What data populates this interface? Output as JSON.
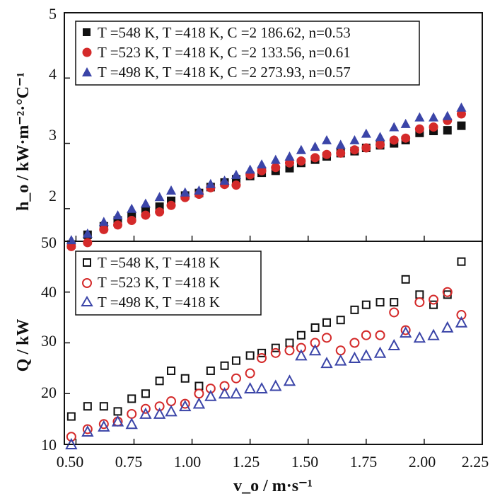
{
  "chart_data": [
    {
      "type": "scatter",
      "panel": "top",
      "ylabel": "h_o / kW·m⁻²·°C⁻¹",
      "ylim": [
        1.5,
        5
      ],
      "yticks": [
        "2",
        "3",
        "4",
        "5"
      ],
      "legend_position": "top-left",
      "series": [
        {
          "name": "T =548 K, T =418 K, C =2 186.62, n=0.53",
          "marker": "square-filled",
          "color": "#111111",
          "x": [
            0.48,
            0.55,
            0.62,
            0.68,
            0.74,
            0.8,
            0.86,
            0.91,
            0.97,
            1.03,
            1.08,
            1.14,
            1.19,
            1.25,
            1.3,
            1.36,
            1.42,
            1.47,
            1.53,
            1.58,
            1.64,
            1.7,
            1.75,
            1.81,
            1.87,
            1.92,
            1.98,
            2.04,
            2.1,
            2.16
          ],
          "y": [
            1.45,
            1.6,
            1.73,
            1.82,
            1.88,
            1.97,
            2.03,
            2.12,
            2.2,
            2.24,
            2.33,
            2.4,
            2.45,
            2.5,
            2.55,
            2.58,
            2.62,
            2.7,
            2.75,
            2.8,
            2.85,
            2.88,
            2.93,
            2.97,
            3.0,
            3.05,
            3.16,
            3.19,
            3.2,
            3.27
          ]
        },
        {
          "name": "T =523 K, T =418 K, C =2 133.56, n=0.61",
          "marker": "circle-filled",
          "color": "#d42a2a",
          "x": [
            0.48,
            0.55,
            0.62,
            0.68,
            0.74,
            0.8,
            0.86,
            0.91,
            0.97,
            1.03,
            1.08,
            1.14,
            1.19,
            1.25,
            1.3,
            1.36,
            1.42,
            1.47,
            1.53,
            1.58,
            1.64,
            1.7,
            1.75,
            1.81,
            1.87,
            1.92,
            1.98,
            2.04,
            2.1,
            2.16
          ],
          "y": [
            1.42,
            1.48,
            1.68,
            1.75,
            1.82,
            1.9,
            1.95,
            2.05,
            2.17,
            2.22,
            2.32,
            2.37,
            2.36,
            2.52,
            2.58,
            2.63,
            2.7,
            2.73,
            2.78,
            2.83,
            2.85,
            2.9,
            2.93,
            2.98,
            3.05,
            3.08,
            3.22,
            3.25,
            3.35,
            3.45
          ]
        },
        {
          "name": "T =498 K, T =418 K, C =2 273.93, n=0.57",
          "marker": "triangle-filled",
          "color": "#3b45a8",
          "x": [
            0.48,
            0.55,
            0.62,
            0.68,
            0.74,
            0.8,
            0.86,
            0.91,
            0.97,
            1.03,
            1.08,
            1.14,
            1.19,
            1.25,
            1.3,
            1.36,
            1.42,
            1.47,
            1.53,
            1.58,
            1.64,
            1.7,
            1.75,
            1.81,
            1.87,
            1.92,
            1.98,
            2.04,
            2.1,
            2.16
          ],
          "y": [
            1.52,
            1.62,
            1.8,
            1.9,
            2.0,
            2.08,
            2.18,
            2.28,
            2.25,
            2.28,
            2.38,
            2.43,
            2.52,
            2.6,
            2.68,
            2.75,
            2.8,
            2.9,
            2.95,
            3.05,
            2.98,
            3.05,
            3.15,
            3.1,
            3.25,
            3.3,
            3.4,
            3.4,
            3.42,
            3.55
          ]
        }
      ]
    },
    {
      "type": "scatter",
      "panel": "bottom",
      "xlabel": "v_o / m·s⁻¹",
      "ylabel": "Q / kW",
      "xlim": [
        0.45,
        2.25
      ],
      "ylim": [
        10,
        50
      ],
      "xticks": [
        "0.50",
        "0.75",
        "1.00",
        "1.25",
        "1.50",
        "1.75",
        "2.00",
        "2.25"
      ],
      "yticks": [
        "10",
        "20",
        "30",
        "40",
        "50"
      ],
      "legend_position": "top-left",
      "series": [
        {
          "name": "T =548 K, T =418 K",
          "marker": "square-open",
          "color": "#111111",
          "x": [
            0.48,
            0.55,
            0.62,
            0.68,
            0.74,
            0.8,
            0.86,
            0.91,
            0.97,
            1.03,
            1.08,
            1.14,
            1.19,
            1.25,
            1.3,
            1.36,
            1.42,
            1.47,
            1.53,
            1.58,
            1.64,
            1.7,
            1.75,
            1.81,
            1.87,
            1.92,
            1.98,
            2.04,
            2.1,
            2.16
          ],
          "y": [
            15.5,
            17.5,
            17.5,
            16.5,
            19.0,
            20.0,
            22.5,
            24.5,
            23.0,
            21.5,
            24.5,
            25.5,
            26.5,
            27.5,
            28.0,
            29.0,
            30.0,
            31.5,
            33.0,
            34.0,
            34.5,
            36.5,
            37.5,
            38.0,
            38.0,
            42.5,
            39.5,
            37.5,
            39.5,
            46.0
          ]
        },
        {
          "name": "T =523 K, T =418 K",
          "marker": "circle-open",
          "color": "#d42a2a",
          "x": [
            0.48,
            0.55,
            0.62,
            0.68,
            0.74,
            0.8,
            0.86,
            0.91,
            0.97,
            1.03,
            1.08,
            1.14,
            1.19,
            1.25,
            1.3,
            1.36,
            1.42,
            1.47,
            1.53,
            1.58,
            1.64,
            1.7,
            1.75,
            1.81,
            1.87,
            1.92,
            1.98,
            2.04,
            2.1,
            2.16
          ],
          "y": [
            11.5,
            13.0,
            14.0,
            14.5,
            16.0,
            17.0,
            17.5,
            18.5,
            18.0,
            20.0,
            21.0,
            21.5,
            23.0,
            24.0,
            27.0,
            28.0,
            28.5,
            29.0,
            30.0,
            31.0,
            28.5,
            30.0,
            31.5,
            31.5,
            36.0,
            32.5,
            38.0,
            38.5,
            40.0,
            35.5
          ]
        },
        {
          "name": "T =498 K, T =418 K",
          "marker": "triangle-open",
          "color": "#3b45a8",
          "x": [
            0.48,
            0.55,
            0.62,
            0.68,
            0.74,
            0.8,
            0.86,
            0.91,
            0.97,
            1.03,
            1.08,
            1.14,
            1.19,
            1.25,
            1.3,
            1.36,
            1.42,
            1.47,
            1.53,
            1.58,
            1.64,
            1.7,
            1.75,
            1.81,
            1.87,
            1.92,
            1.98,
            2.04,
            2.1,
            2.16
          ],
          "y": [
            10.0,
            12.5,
            13.5,
            14.5,
            14.0,
            16.0,
            16.0,
            16.5,
            17.5,
            18.0,
            19.5,
            20.0,
            20.0,
            21.0,
            21.0,
            21.5,
            22.5,
            27.5,
            28.5,
            26.0,
            26.5,
            27.0,
            27.5,
            28.0,
            29.5,
            32.0,
            31.0,
            31.5,
            33.0,
            34.0
          ]
        }
      ]
    }
  ]
}
